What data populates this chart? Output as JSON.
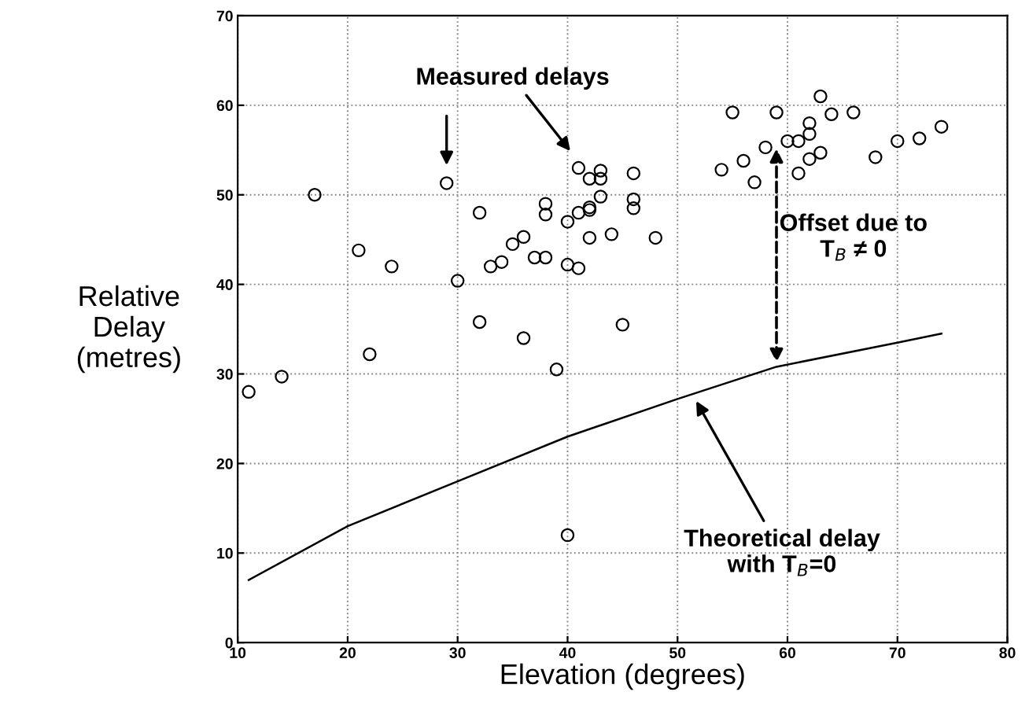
{
  "chart_data": {
    "type": "scatter",
    "xlabel": "Elevation (degrees)",
    "ylabel": "Relative\nDelay\n(metres)",
    "xlim": [
      10,
      80
    ],
    "ylim": [
      0,
      70
    ],
    "xticks": [
      10,
      20,
      30,
      40,
      50,
      60,
      70,
      80
    ],
    "yticks": [
      0,
      10,
      20,
      30,
      40,
      50,
      60,
      70
    ],
    "grid": true,
    "series": [
      {
        "color": "#000000",
        "marker": "circle",
        "x": [
          11,
          14,
          17,
          21,
          22,
          24,
          29,
          30,
          32,
          32,
          33,
          34,
          35,
          36,
          36,
          37,
          38,
          38,
          38,
          39,
          40,
          40,
          40,
          41,
          41,
          41,
          42,
          42,
          42,
          42,
          43,
          43,
          43,
          44,
          45,
          46,
          46,
          46,
          48,
          54,
          55,
          56,
          57,
          58,
          59,
          60,
          61,
          61,
          62,
          62,
          62,
          63,
          63,
          64,
          66,
          68,
          70,
          72,
          74
        ],
        "values": [
          28,
          29.7,
          50,
          43.8,
          32.2,
          42,
          51.3,
          40.4,
          48,
          35.8,
          42,
          42.5,
          44.5,
          45.3,
          34,
          43,
          43,
          47.8,
          49,
          30.5,
          47,
          42.2,
          12,
          53,
          48,
          41.8,
          51.8,
          48.6,
          48.3,
          45.2,
          52.7,
          51.8,
          49.8,
          45.6,
          35.5,
          52.4,
          49.5,
          48.5,
          45.2,
          52.8,
          59.2,
          53.8,
          51.4,
          55.3,
          59.2,
          56,
          52.4,
          56,
          58,
          56.8,
          54,
          61,
          54.7,
          59,
          59.2,
          54.2,
          56,
          56.3,
          57.6
        ]
      },
      {
        "type": "line",
        "color": "#000000",
        "marker": "none",
        "line_style": "solid",
        "x": [
          11,
          20,
          30,
          40,
          50,
          59,
          70,
          74
        ],
        "values": [
          7,
          13,
          18,
          23,
          27.2,
          30.8,
          33.5,
          34.5
        ]
      }
    ],
    "annotations": [
      "Measured delays",
      "Offset due to\nT$_{B}$ ≠ 0",
      {
        "text": "Theoretical delay\nwith T$_{B}$=0",
        "x": 51.5,
        "y": 27.4
      }
    ]
  }
}
